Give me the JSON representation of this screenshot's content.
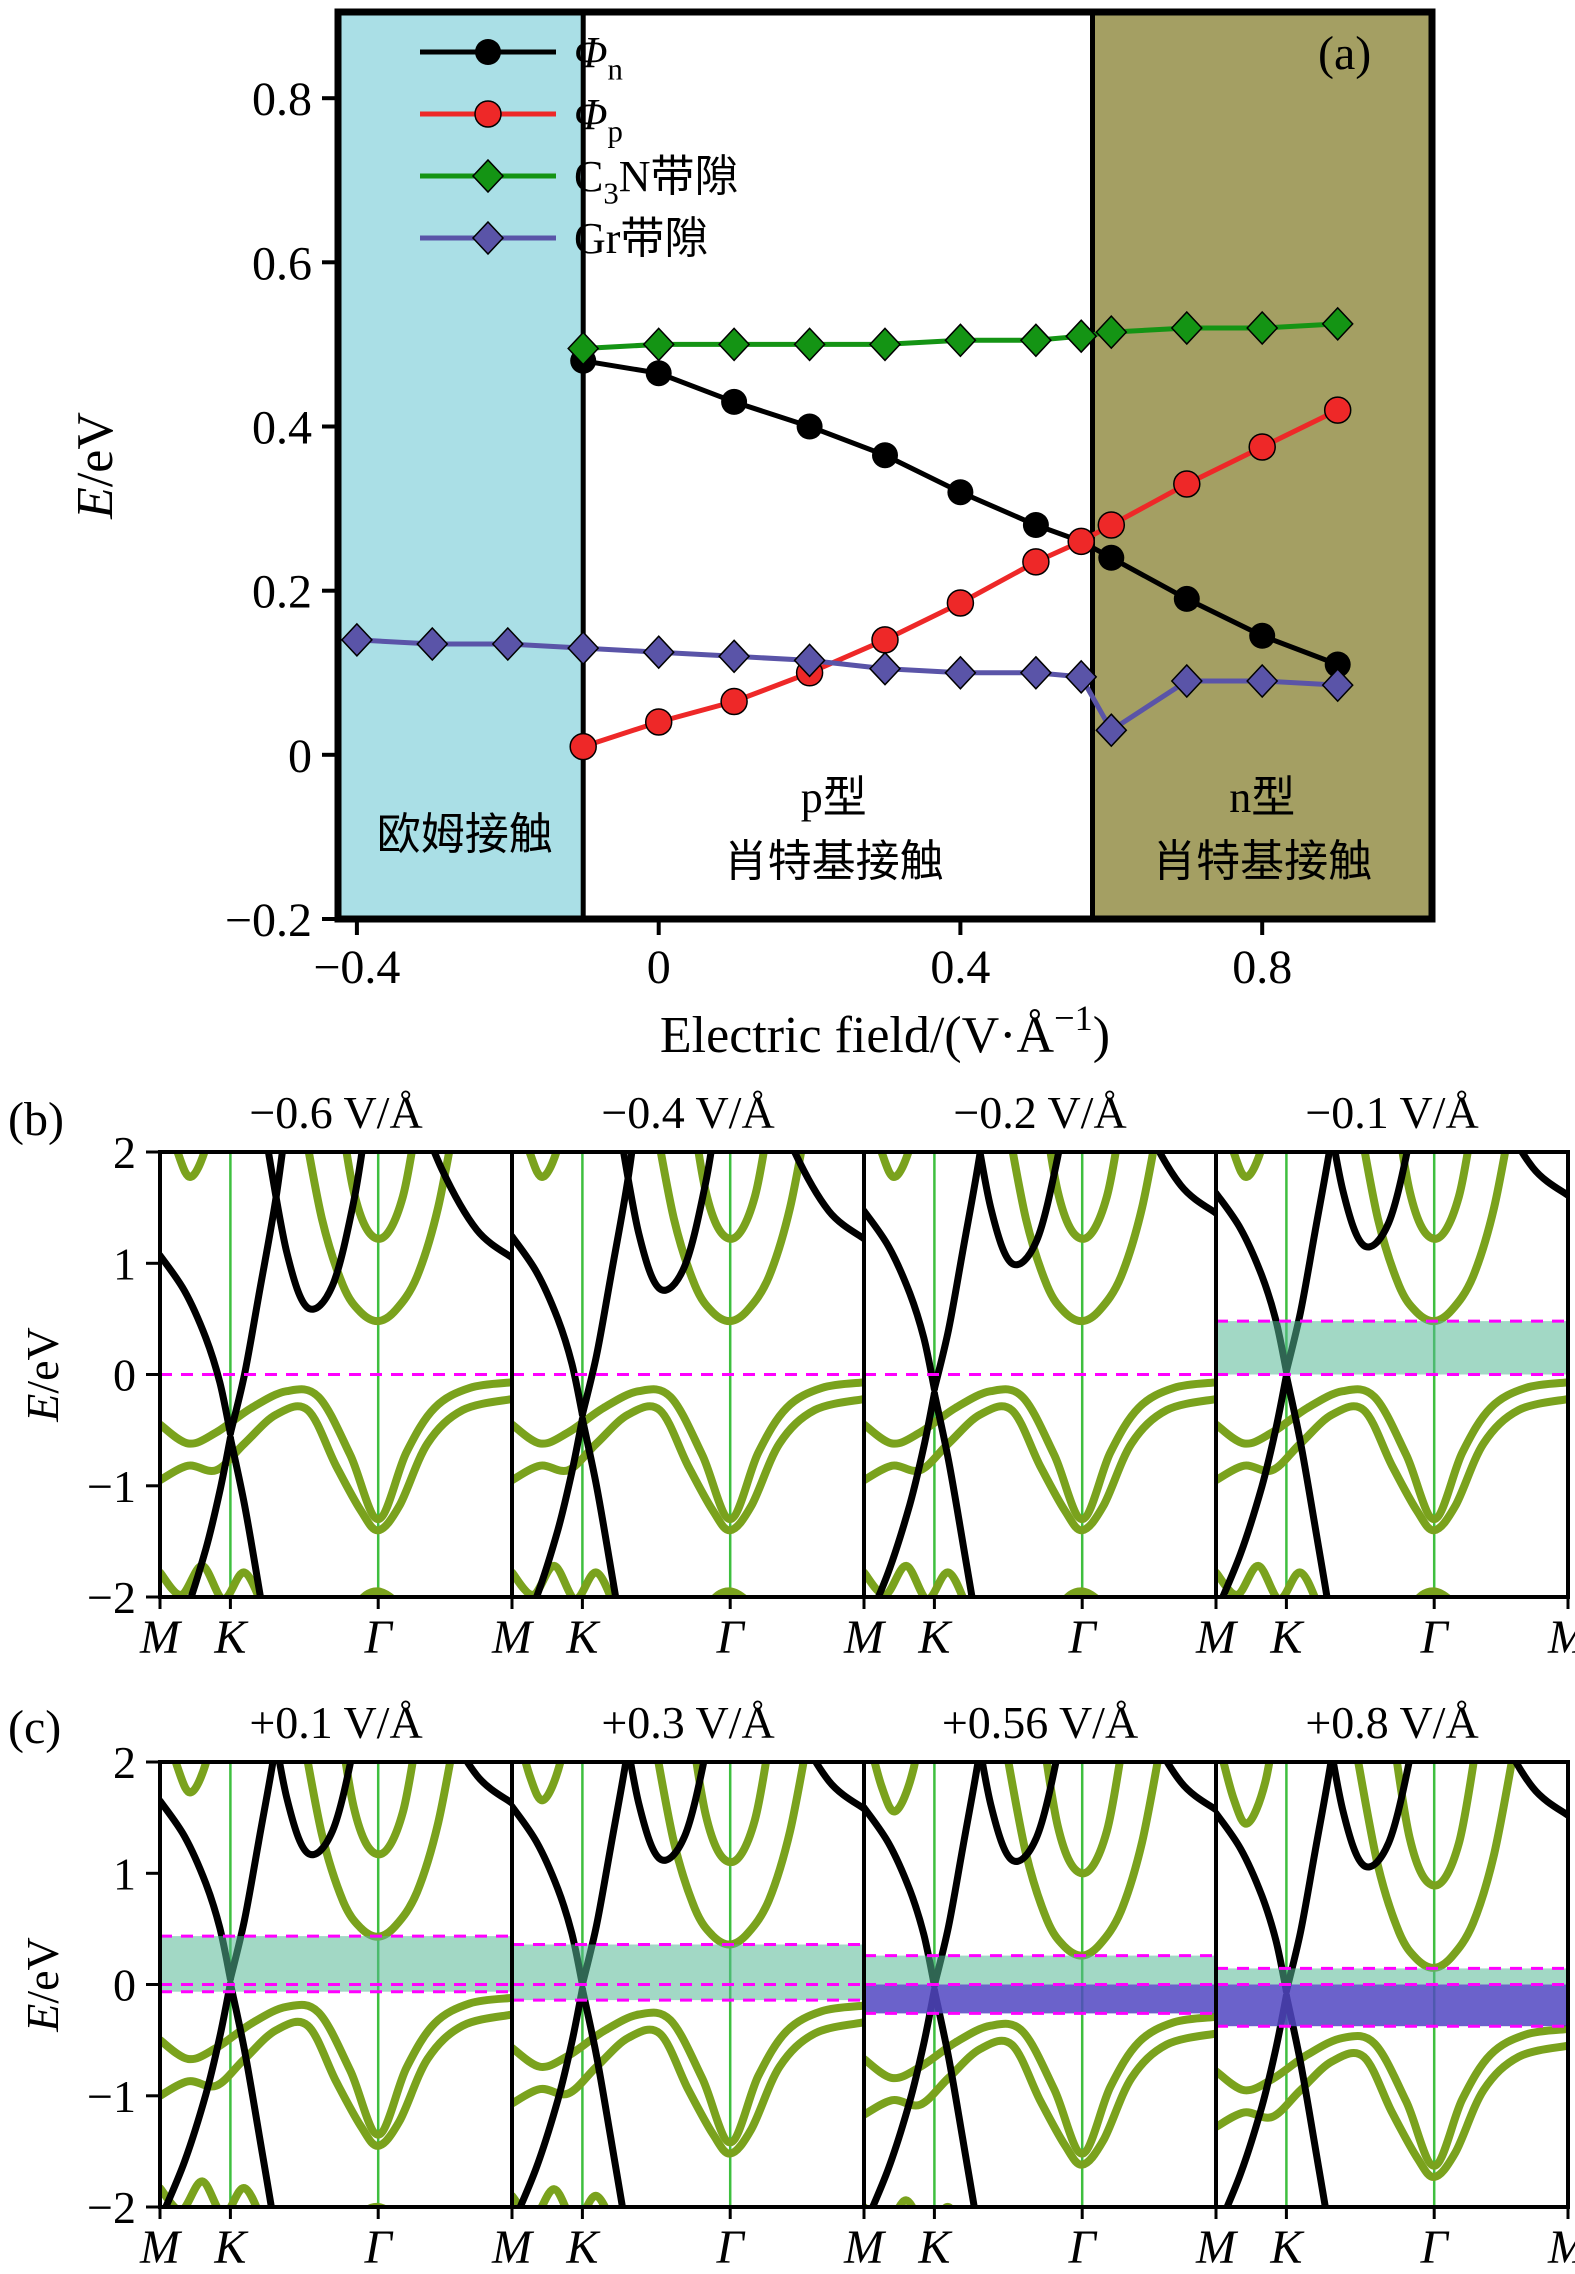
{
  "panel_tags": {
    "a": "(a)",
    "b": "(b)",
    "c": "(c)"
  },
  "colors": {
    "graphene": "#000000",
    "c3n": "#7aa21d",
    "fermi": "#ff00ff",
    "kline": "#3fbf3f",
    "teal": "#55b896",
    "teal_opacity": 0.55,
    "purple": "#5146c2",
    "purple_opacity": 0.85,
    "axis": "#000000"
  },
  "chart_data": [
    {
      "id": "a",
      "type": "line",
      "xlabel_segments": [
        [
          "Electric field/(V·Å",
          ""
        ],
        [
          "−1",
          "sup"
        ],
        [
          ")",
          ""
        ]
      ],
      "ylabel_segments": [
        [
          "E",
          "it"
        ],
        [
          "/eV",
          ""
        ]
      ],
      "xlim": [
        -0.425,
        1.025
      ],
      "ylim": [
        -0.2,
        0.905
      ],
      "xticks": [
        {
          "v": -0.4,
          "label": "−0.4"
        },
        {
          "v": 0,
          "label": "0"
        },
        {
          "v": 0.4,
          "label": "0.4"
        },
        {
          "v": 0.8,
          "label": "0.8"
        }
      ],
      "yticks": [
        {
          "v": -0.2,
          "label": "−0.2"
        },
        {
          "v": 0,
          "label": "0"
        },
        {
          "v": 0.2,
          "label": "0.2"
        },
        {
          "v": 0.4,
          "label": "0.4"
        },
        {
          "v": 0.6,
          "label": "0.6"
        },
        {
          "v": 0.8,
          "label": "0.8"
        }
      ],
      "regions": [
        {
          "id": "ohmic",
          "label_lines": [
            "欧姆接触"
          ],
          "label_x": -0.257,
          "label_ys": [
            -0.095
          ],
          "from": -0.425,
          "to": -0.1,
          "color": "#aadfe6"
        },
        {
          "id": "p-schottky",
          "label_lines": [
            "p型",
            "肖特基接触"
          ],
          "label_x": 0.232,
          "label_ys": [
            -0.05,
            -0.128
          ],
          "from": -0.1,
          "to": 0.575,
          "color": "#ffffff"
        },
        {
          "id": "n-schottky",
          "label_lines": [
            "n型",
            "肖特基接触"
          ],
          "label_x": 0.8,
          "label_ys": [
            -0.05,
            -0.128
          ],
          "from": 0.575,
          "to": 1.025,
          "color": "#a49f63"
        }
      ],
      "series": [
        {
          "id": "phi-n",
          "legend_segments": [
            [
              "Φ",
              "it"
            ],
            [
              "n",
              "sub"
            ]
          ],
          "color": "#000000",
          "marker": "circle",
          "x": [
            -0.1,
            0,
            0.1,
            0.2,
            0.3,
            0.4,
            0.5,
            0.56,
            0.6,
            0.7,
            0.8,
            0.9
          ],
          "y": [
            0.48,
            0.465,
            0.43,
            0.4,
            0.365,
            0.32,
            0.28,
            0.26,
            0.24,
            0.19,
            0.145,
            0.11
          ]
        },
        {
          "id": "phi-p",
          "legend_segments": [
            [
              "Φ",
              "it"
            ],
            [
              "p",
              "sub"
            ]
          ],
          "color": "#ee2828",
          "marker": "circle",
          "x": [
            -0.1,
            0,
            0.1,
            0.2,
            0.3,
            0.4,
            0.5,
            0.56,
            0.6,
            0.7,
            0.8,
            0.9
          ],
          "y": [
            0.01,
            0.04,
            0.065,
            0.1,
            0.14,
            0.185,
            0.235,
            0.26,
            0.28,
            0.33,
            0.375,
            0.42
          ]
        },
        {
          "id": "c3n-gap",
          "legend_segments": [
            [
              "C",
              ""
            ],
            [
              "3",
              "sub"
            ],
            [
              "N带隙",
              ""
            ]
          ],
          "color": "#149414",
          "marker": "diamond",
          "x": [
            -0.1,
            0,
            0.1,
            0.2,
            0.3,
            0.4,
            0.5,
            0.56,
            0.6,
            0.7,
            0.8,
            0.9
          ],
          "y": [
            0.495,
            0.5,
            0.5,
            0.5,
            0.5,
            0.505,
            0.505,
            0.51,
            0.515,
            0.52,
            0.52,
            0.525
          ]
        },
        {
          "id": "gr-gap",
          "legend_segments": [
            [
              "Gr带隙",
              ""
            ]
          ],
          "color": "#5a54a8",
          "marker": "diamond",
          "x": [
            -0.4,
            -0.3,
            -0.2,
            -0.1,
            0,
            0.1,
            0.2,
            0.3,
            0.4,
            0.5,
            0.56,
            0.6,
            0.7,
            0.8,
            0.9
          ],
          "y": [
            0.14,
            0.135,
            0.135,
            0.13,
            0.125,
            0.12,
            0.115,
            0.105,
            0.1,
            0.1,
            0.095,
            0.03,
            0.09,
            0.09,
            0.085
          ]
        }
      ]
    },
    {
      "id": "b",
      "type": "band-structure-row",
      "ylabel_segments": [
        [
          "E",
          "it"
        ],
        [
          "/eV",
          ""
        ]
      ],
      "ylim": [
        -2,
        2
      ],
      "yticks": [
        {
          "v": 2,
          "label": "2"
        },
        {
          "v": 1,
          "label": "1"
        },
        {
          "v": 0,
          "label": "0"
        },
        {
          "v": -1,
          "label": "−1"
        },
        {
          "v": -2,
          "label": "−2"
        }
      ],
      "kpath": [
        "M",
        "K",
        "Γ",
        "M"
      ],
      "kpos": [
        0,
        0.2,
        0.62,
        1
      ],
      "fermi_energy": 0,
      "panels": [
        {
          "title": "−0.6 V/Å",
          "dirac": -0.55,
          "green_shift": 0,
          "shades": []
        },
        {
          "title": "−0.4 V/Å",
          "dirac": -0.38,
          "green_shift": 0,
          "shades": []
        },
        {
          "title": "−0.2 V/Å",
          "dirac": -0.15,
          "green_shift": 0,
          "shades": []
        },
        {
          "title": "−0.1 V/Å",
          "dirac": 0.01,
          "green_shift": 0,
          "shades": [
            {
              "from": 0,
              "to": 0.48,
              "color": "teal"
            }
          ]
        }
      ]
    },
    {
      "id": "c",
      "type": "band-structure-row",
      "ylabel_segments": [
        [
          "E",
          "it"
        ],
        [
          "/eV",
          ""
        ]
      ],
      "ylim": [
        -2,
        2
      ],
      "yticks": [
        {
          "v": 2,
          "label": "2"
        },
        {
          "v": 1,
          "label": "1"
        },
        {
          "v": 0,
          "label": "0"
        },
        {
          "v": -1,
          "label": "−1"
        },
        {
          "v": -2,
          "label": "−2"
        }
      ],
      "kpath": [
        "M",
        "K",
        "Γ",
        "M"
      ],
      "kpos": [
        0,
        0.2,
        0.62,
        1
      ],
      "fermi_energy": 0,
      "panels": [
        {
          "title": "+0.1 V/Å",
          "dirac": 0.03,
          "green_shift": -0.05,
          "shades": [
            {
              "from": -0.065,
              "to": 0.435,
              "color": "teal"
            }
          ]
        },
        {
          "title": "+0.3 V/Å",
          "dirac": -0.02,
          "green_shift": -0.12,
          "shades": [
            {
              "from": -0.14,
              "to": 0.36,
              "color": "teal"
            }
          ]
        },
        {
          "title": "+0.56 V/Å",
          "dirac": -0.03,
          "green_shift": -0.22,
          "shades": [
            {
              "from": 0,
              "to": 0.26,
              "color": "teal"
            },
            {
              "from": -0.26,
              "to": 0,
              "color": "purple"
            }
          ]
        },
        {
          "title": "+0.8 V/Å",
          "dirac": -0.08,
          "green_shift": -0.33,
          "shades": [
            {
              "from": 0,
              "to": 0.145,
              "color": "teal"
            },
            {
              "from": -0.375,
              "to": 0,
              "color": "purple"
            }
          ]
        }
      ]
    }
  ],
  "band_shapes": {
    "graphene": [
      {
        "pts": [
          [
            0,
            1.62
          ],
          [
            0.07,
            1.3
          ],
          [
            0.13,
            0.88
          ],
          [
            0.17,
            0.48
          ],
          [
            0.2,
            0.02
          ]
        ],
        "smooth": true
      },
      {
        "pts": [
          [
            0.2,
            0.02
          ],
          [
            0.24,
            0.55
          ],
          [
            0.28,
            1.25
          ],
          [
            0.33,
            2.15
          ],
          [
            0.37,
            3.1
          ]
        ],
        "smooth": true
      },
      {
        "pts": [
          [
            0,
            -2.15
          ],
          [
            0.07,
            -1.62
          ],
          [
            0.13,
            -1.02
          ],
          [
            0.17,
            -0.5
          ],
          [
            0.2,
            -0.02
          ]
        ],
        "smooth": true
      },
      {
        "pts": [
          [
            0.2,
            -0.02
          ],
          [
            0.24,
            -0.62
          ],
          [
            0.28,
            -1.35
          ],
          [
            0.33,
            -2.3
          ],
          [
            0.37,
            -3.2
          ]
        ],
        "smooth": true
      },
      {
        "pts": [
          [
            0.7,
            3.2
          ],
          [
            0.8,
            2.4
          ],
          [
            0.9,
            1.85
          ],
          [
            1,
            1.6
          ]
        ],
        "smooth": true
      },
      {
        "pts": [
          [
            0.72,
            -3.3
          ],
          [
            0.82,
            -2.65
          ],
          [
            0.92,
            -2.28
          ],
          [
            1,
            -2.12
          ]
        ],
        "smooth": true
      },
      {
        "pts": [
          [
            0.3,
            2.7
          ],
          [
            0.36,
            1.65
          ],
          [
            0.42,
            1.15
          ],
          [
            0.49,
            1.35
          ],
          [
            0.55,
            2.1
          ],
          [
            0.59,
            2.9
          ]
        ],
        "smooth": true
      }
    ],
    "c3n": [
      {
        "pts": [
          [
            0.4,
            2.4
          ],
          [
            0.46,
            1.4
          ],
          [
            0.52,
            0.8
          ],
          [
            0.57,
            0.56
          ],
          [
            0.62,
            0.48
          ],
          [
            0.67,
            0.58
          ],
          [
            0.73,
            0.88
          ],
          [
            0.79,
            1.5
          ],
          [
            0.85,
            2.5
          ]
        ],
        "smooth": true
      },
      {
        "pts": [
          [
            0.48,
            3.1
          ],
          [
            0.55,
            1.65
          ],
          [
            0.62,
            1.22
          ],
          [
            0.69,
            1.6
          ],
          [
            0.75,
            2.7
          ]
        ],
        "smooth": true
      },
      {
        "pts": [
          [
            0,
            2.6
          ],
          [
            0.05,
            2.0
          ],
          [
            0.09,
            1.78
          ],
          [
            0.14,
            2.15
          ],
          [
            0.18,
            2.9
          ]
        ],
        "smooth": true
      },
      {
        "pts": [
          [
            0,
            -0.45
          ],
          [
            0.08,
            -0.62
          ],
          [
            0.16,
            -0.52
          ],
          [
            0.26,
            -0.3
          ],
          [
            0.36,
            -0.15
          ],
          [
            0.45,
            -0.2
          ],
          [
            0.54,
            -0.72
          ],
          [
            0.62,
            -1.3
          ],
          [
            0.7,
            -0.7
          ],
          [
            0.78,
            -0.3
          ],
          [
            0.88,
            -0.12
          ],
          [
            1,
            -0.07
          ]
        ],
        "smooth": true
      },
      {
        "pts": [
          [
            0,
            -0.95
          ],
          [
            0.08,
            -0.82
          ],
          [
            0.16,
            -0.86
          ],
          [
            0.24,
            -0.62
          ],
          [
            0.33,
            -0.36
          ],
          [
            0.42,
            -0.32
          ],
          [
            0.5,
            -0.82
          ],
          [
            0.57,
            -1.22
          ],
          [
            0.62,
            -1.4
          ],
          [
            0.68,
            -1.18
          ],
          [
            0.76,
            -0.62
          ],
          [
            0.86,
            -0.32
          ],
          [
            1,
            -0.22
          ]
        ],
        "smooth": true
      },
      {
        "pts": [
          [
            0,
            -1.78
          ],
          [
            0.06,
            -1.98
          ],
          [
            0.12,
            -1.72
          ],
          [
            0.18,
            -2.02
          ],
          [
            0.24,
            -1.78
          ],
          [
            0.3,
            -2.15
          ],
          [
            0.36,
            -2.6
          ]
        ],
        "smooth": true
      },
      {
        "pts": [
          [
            0.45,
            -2.6
          ],
          [
            0.55,
            -2.1
          ],
          [
            0.62,
            -1.95
          ],
          [
            0.7,
            -2.15
          ],
          [
            0.78,
            -2.6
          ]
        ],
        "smooth": true
      },
      {
        "pts": [
          [
            0.86,
            -2.5
          ],
          [
            0.94,
            -2.2
          ],
          [
            1,
            -2.08
          ]
        ],
        "smooth": true
      }
    ]
  }
}
